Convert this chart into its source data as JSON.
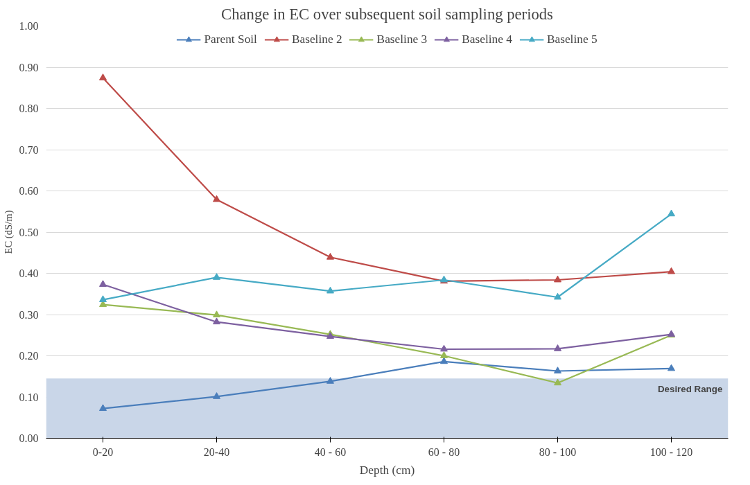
{
  "chart_data": {
    "type": "line",
    "title": "Change in EC over subsequent soil sampling periods",
    "xlabel": "Depth (cm)",
    "ylabel": "EC (dS/m)",
    "categories": [
      "0-20",
      "20-40",
      "40 - 60",
      "60 - 80",
      "80 - 100",
      "100 - 120"
    ],
    "series": [
      {
        "name": "Parent Soil",
        "color": "#4a7ebb",
        "values": [
          0.072,
          0.101,
          0.138,
          0.186,
          0.163,
          0.169
        ]
      },
      {
        "name": "Baseline 2",
        "color": "#be4b48",
        "values": [
          0.874,
          0.579,
          0.439,
          0.381,
          0.384,
          0.404
        ]
      },
      {
        "name": "Baseline 3",
        "color": "#98b954",
        "values": [
          0.324,
          0.299,
          0.252,
          0.2,
          0.134,
          0.25
        ]
      },
      {
        "name": "Baseline 4",
        "color": "#7d60a0",
        "values": [
          0.373,
          0.282,
          0.247,
          0.216,
          0.217,
          0.252
        ]
      },
      {
        "name": "Baseline 5",
        "color": "#46aac5",
        "values": [
          0.336,
          0.39,
          0.357,
          0.384,
          0.342,
          0.544
        ]
      }
    ],
    "ylim": [
      0,
      1.0
    ],
    "yticks": [
      {
        "value": 0,
        "label": "0.00"
      },
      {
        "value": 0.1,
        "label": "0.10"
      },
      {
        "value": 0.2,
        "label": "0.20"
      },
      {
        "value": 0.3,
        "label": "0.30"
      },
      {
        "value": 0.4,
        "label": "0.40"
      },
      {
        "value": 0.5,
        "label": "0.50"
      },
      {
        "value": 0.6,
        "label": "0.60"
      },
      {
        "value": 0.7,
        "label": "0.70"
      },
      {
        "value": 0.8,
        "label": "0.80"
      },
      {
        "value": 0.9,
        "label": "0.90"
      },
      {
        "value": 1.0,
        "label": "1.00"
      }
    ],
    "bands": [
      {
        "axis": "y",
        "from": 0,
        "to": 0.145,
        "label": "Desired Range",
        "color": "#c9d6e8"
      }
    ],
    "grid": "y",
    "legend": "top",
    "marker": "triangle",
    "line_style": "solid"
  }
}
